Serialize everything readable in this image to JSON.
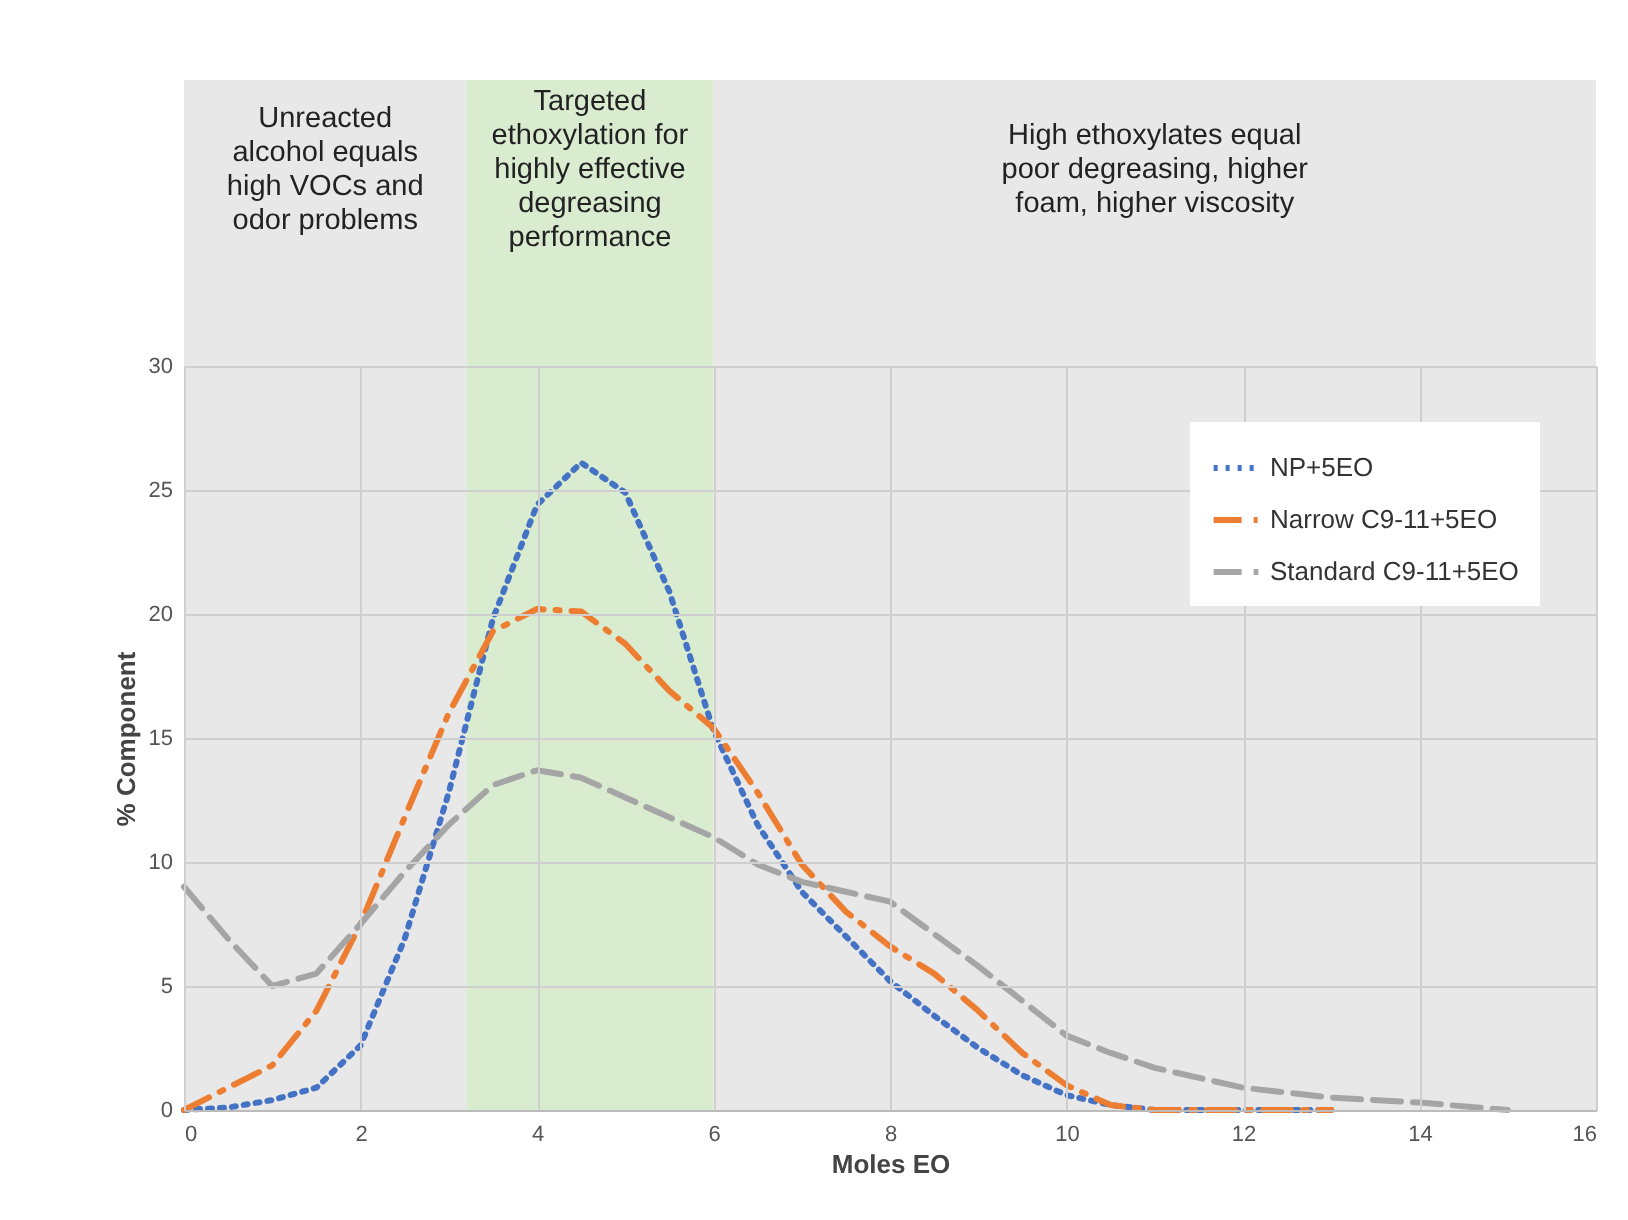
{
  "chart_data": {
    "type": "line",
    "xlabel": "Moles EO",
    "ylabel": "% Component",
    "x": [
      0,
      0.5,
      1,
      1.5,
      2,
      2.5,
      3,
      3.5,
      4,
      4.5,
      5,
      5.5,
      6,
      6.5,
      7,
      7.5,
      8,
      8.5,
      9,
      9.5,
      10,
      10.5,
      11,
      12,
      13,
      14,
      15
    ],
    "series": [
      {
        "name": "NP+5EO",
        "color": "#4472c4",
        "line_style": "dotted",
        "values": [
          0,
          0.1,
          0.4,
          0.9,
          2.6,
          6.9,
          12.8,
          19.8,
          24.4,
          26.1,
          24.9,
          20.9,
          15.3,
          11.5,
          8.8,
          7.0,
          5.2,
          3.8,
          2.5,
          1.4,
          0.6,
          0.2,
          0,
          0,
          0,
          null,
          null
        ]
      },
      {
        "name": "Narrow C9-11+5EO",
        "color": "#ed7d31",
        "line_style": "dashdot",
        "values": [
          0,
          0.9,
          1.8,
          4.0,
          7.5,
          11.8,
          16.0,
          19.3,
          20.2,
          20.1,
          18.8,
          16.9,
          15.4,
          12.8,
          9.9,
          8.0,
          6.6,
          5.5,
          4.0,
          2.3,
          1.0,
          0.2,
          0,
          0,
          0,
          null,
          null
        ]
      },
      {
        "name": "Standard C9-11+5EO",
        "color": "#a5a5a5",
        "line_style": "dashed",
        "values": [
          9.0,
          6.9,
          5.0,
          5.5,
          7.5,
          9.6,
          11.5,
          13.1,
          13.7,
          13.4,
          12.6,
          11.8,
          11.0,
          9.9,
          9.2,
          8.8,
          8.4,
          7.1,
          5.8,
          4.4,
          3.0,
          2.3,
          1.7,
          0.9,
          0.5,
          0.3,
          0
        ]
      }
    ],
    "xlim": [
      0,
      16
    ],
    "xticks": [
      0,
      2,
      4,
      6,
      8,
      10,
      12,
      14,
      16
    ],
    "ylim": [
      0,
      30
    ],
    "yticks": [
      0,
      5,
      10,
      15,
      20,
      25,
      30
    ],
    "bands": [
      {
        "axis": "x",
        "from": 0,
        "to": 3.2,
        "label": "Unreacted\nalcohol equals\nhigh VOCs and\nodor problems",
        "color": "#e8e8e8"
      },
      {
        "axis": "x",
        "from": 3.2,
        "to": 6,
        "label": "Targeted\nethoxylation for\nhighly effective\ndegreasing\nperformance",
        "color": "#d9ecd0"
      },
      {
        "axis": "x",
        "from": 6,
        "to": 16,
        "label": "High ethoxylates equal\npoor degreasing, higher\nfoam, higher viscosity",
        "color": "#e8e8e8"
      }
    ],
    "grid": true,
    "legend": "top right",
    "marker": "none"
  }
}
